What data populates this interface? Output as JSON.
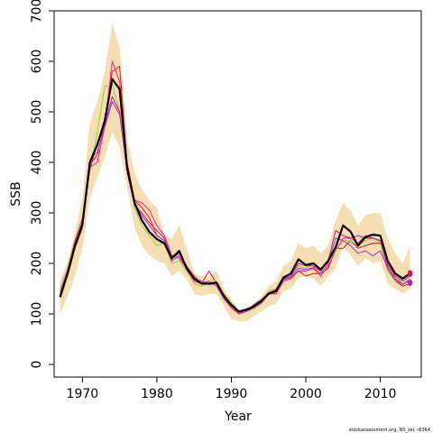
{
  "chart_data": {
    "type": "line",
    "title": "",
    "xlabel": "Year",
    "ylabel": "SSB",
    "xlim": [
      1966.2,
      2015.5
    ],
    "ylim": [
      -25,
      700
    ],
    "xticks": [
      1970,
      1980,
      1990,
      2000,
      2010
    ],
    "yticks": [
      0,
      100,
      200,
      300,
      400,
      500,
      600,
      700
    ],
    "grid": false,
    "legend": "none",
    "credit": "stockassessment.org, NS_sel, r6364",
    "band_color": "#f5deb3",
    "years": [
      1967,
      1968,
      1969,
      1970,
      1971,
      1972,
      1973,
      1974,
      1975,
      1976,
      1977,
      1978,
      1979,
      1980,
      1981,
      1982,
      1983,
      1984,
      1985,
      1986,
      1987,
      1988,
      1989,
      1990,
      1991,
      1992,
      1993,
      1994,
      1995,
      1996,
      1997,
      1998,
      1999,
      2000,
      2001,
      2002,
      2003,
      2004,
      2005,
      2006,
      2007,
      2008,
      2009,
      2010,
      2011,
      2012,
      2013,
      2014
    ],
    "band": {
      "upper": [
        165,
        205,
        260,
        330,
        480,
        520,
        580,
        675,
        630,
        450,
        380,
        345,
        325,
        310,
        255,
        250,
        275,
        230,
        180,
        175,
        175,
        185,
        150,
        120,
        100,
        105,
        120,
        135,
        155,
        165,
        195,
        205,
        240,
        230,
        235,
        220,
        235,
        285,
        320,
        305,
        275,
        295,
        300,
        300,
        250,
        220,
        200,
        235
      ],
      "lower": [
        100,
        135,
        175,
        230,
        330,
        370,
        410,
        460,
        430,
        350,
        270,
        235,
        215,
        205,
        200,
        175,
        185,
        170,
        140,
        135,
        140,
        140,
        115,
        90,
        85,
        85,
        95,
        105,
        115,
        120,
        145,
        150,
        170,
        175,
        170,
        155,
        175,
        190,
        235,
        215,
        195,
        210,
        200,
        205,
        160,
        150,
        140,
        150
      ]
    },
    "series": [
      {
        "color": "#000000",
        "width": 2.2,
        "values": [
          133,
          180,
          235,
          278,
          400,
          435,
          482,
          565,
          545,
          390,
          320,
          285,
          262,
          248,
          240,
          210,
          225,
          190,
          170,
          160,
          160,
          162,
          135,
          118,
          105,
          108,
          115,
          125,
          140,
          145,
          172,
          180,
          208,
          197,
          200,
          188,
          205,
          232,
          275,
          263,
          235,
          252,
          257,
          255,
          205,
          180,
          170,
          180
        ]
      },
      {
        "color": "#e41a1c",
        "width": 1,
        "values": [
          137,
          175,
          230,
          270,
          395,
          415,
          480,
          580,
          590,
          400,
          325,
          310,
          290,
          255,
          245,
          215,
          220,
          195,
          165,
          160,
          185,
          160,
          130,
          112,
          100,
          105,
          115,
          120,
          140,
          140,
          170,
          170,
          185,
          175,
          180,
          180,
          190,
          230,
          230,
          245,
          230,
          235,
          240,
          240,
          190,
          165,
          155,
          160
        ]
      },
      {
        "color": "#ff1493",
        "width": 1,
        "values": [
          148,
          190,
          245,
          290,
          390,
          400,
          470,
          600,
          560,
          390,
          325,
          320,
          305,
          275,
          255,
          215,
          210,
          190,
          165,
          160,
          165,
          155,
          130,
          115,
          105,
          110,
          115,
          125,
          140,
          140,
          165,
          170,
          185,
          185,
          190,
          175,
          195,
          225,
          250,
          250,
          240,
          255,
          250,
          245,
          195,
          170,
          160,
          165
        ]
      },
      {
        "color": "#9acd32",
        "width": 1,
        "values": [
          145,
          190,
          240,
          285,
          385,
          460,
          550,
          555,
          500,
          395,
          310,
          275,
          255,
          235,
          240,
          200,
          205,
          185,
          160,
          155,
          160,
          165,
          140,
          125,
          105,
          105,
          110,
          120,
          145,
          150,
          175,
          175,
          195,
          190,
          200,
          185,
          205,
          225,
          245,
          245,
          235,
          245,
          250,
          240,
          185,
          165,
          160,
          170
        ]
      },
      {
        "color": "#c71585",
        "width": 1,
        "values": [
          140,
          185,
          235,
          275,
          385,
          440,
          475,
          530,
          500,
          380,
          315,
          300,
          280,
          265,
          250,
          210,
          220,
          195,
          175,
          160,
          160,
          160,
          138,
          118,
          102,
          106,
          118,
          128,
          142,
          148,
          170,
          175,
          200,
          195,
          195,
          185,
          205,
          265,
          255,
          250,
          255,
          250,
          250,
          245,
          200,
          175,
          165,
          175
        ]
      },
      {
        "color": "#9932cc",
        "width": 1,
        "values": [
          135,
          178,
          232,
          272,
          405,
          420,
          470,
          520,
          495,
          385,
          315,
          295,
          275,
          255,
          245,
          205,
          215,
          190,
          170,
          165,
          158,
          160,
          132,
          115,
          102,
          105,
          112,
          122,
          138,
          145,
          168,
          172,
          190,
          188,
          192,
          180,
          200,
          250,
          245,
          235,
          220,
          225,
          215,
          225,
          190,
          168,
          158,
          168
        ]
      }
    ],
    "endpoints": [
      {
        "x": 2014,
        "y": 182,
        "color": "#e41a1c"
      },
      {
        "x": 2014,
        "y": 178,
        "color": "#c71585"
      },
      {
        "x": 2014,
        "y": 163,
        "color": "#c71585"
      },
      {
        "x": 2014,
        "y": 160,
        "color": "#9932cc"
      }
    ]
  }
}
